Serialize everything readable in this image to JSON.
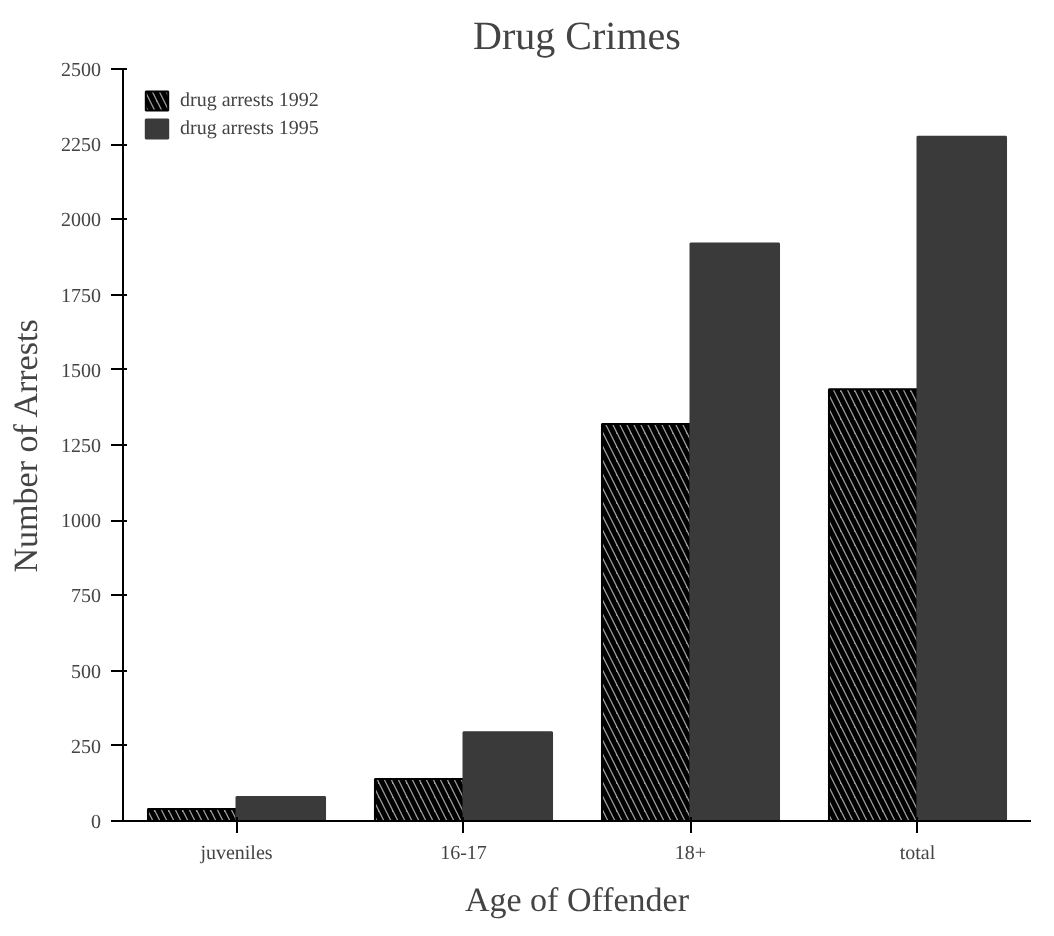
{
  "chart_data": {
    "type": "bar",
    "title": "Drug Crimes",
    "xlabel": "Age of Offender",
    "ylabel": "Number of Arrests",
    "categories": [
      "juveniles",
      "16-17",
      "18+",
      "total"
    ],
    "series": [
      {
        "name": "drug arrests 1992",
        "color": "#9a9a9a",
        "values": [
          40,
          140,
          1320,
          1435
        ]
      },
      {
        "name": "drug arrests 1995",
        "color": "#3a3a3a",
        "values": [
          80,
          295,
          1920,
          2275
        ]
      }
    ],
    "ylim": [
      0,
      2500
    ],
    "yticks": [
      0,
      250,
      500,
      750,
      1000,
      1250,
      1500,
      1750,
      2000,
      2250,
      2500
    ],
    "grid": false,
    "legend": "top left"
  }
}
